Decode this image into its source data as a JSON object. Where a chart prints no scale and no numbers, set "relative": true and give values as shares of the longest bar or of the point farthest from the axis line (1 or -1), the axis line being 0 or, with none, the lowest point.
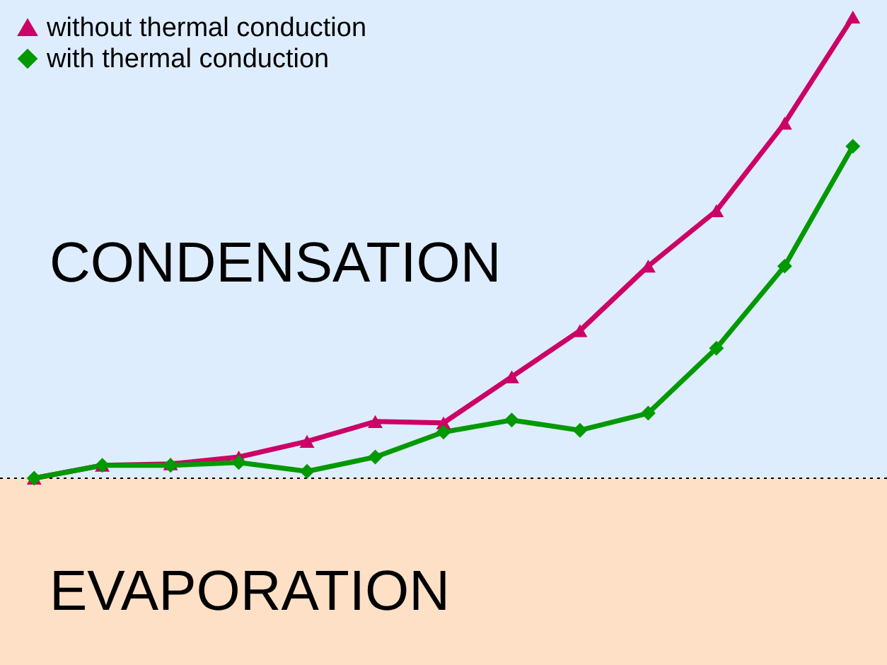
{
  "chart_data": {
    "type": "line",
    "relative": true,
    "categories": [
      null,
      null,
      null,
      null,
      null,
      null,
      null,
      null,
      null,
      null,
      null,
      null,
      null
    ],
    "series": [
      {
        "name": "without thermal conduction",
        "color": "#cc0066",
        "marker": "triangle",
        "values": [
          0,
          0.028,
          0.031,
          0.046,
          0.08,
          0.123,
          0.12,
          0.22,
          0.32,
          0.46,
          0.58,
          0.77,
          1
        ]
      },
      {
        "name": "with thermal conduction",
        "color": "#009900",
        "marker": "diamond",
        "values": [
          0,
          0.028,
          0.028,
          0.034,
          0.015,
          0.046,
          0.1,
          0.126,
          0.104,
          0.141,
          0.282,
          0.46,
          0.72
        ]
      }
    ],
    "bands": [
      {
        "axis": "y",
        "from": 0,
        "to": 1.037,
        "label": "CONDENSATION",
        "color": "#deedfd"
      },
      {
        "axis": "y",
        "from": -0.405,
        "to": 0,
        "label": "EVAPORATION",
        "color": "#fde0c6"
      }
    ],
    "ref_lines": [
      {
        "axis": "y",
        "value": 0,
        "color": "#000000",
        "line_style": "dotted"
      }
    ],
    "legend": "top left",
    "line_style": "solid"
  }
}
